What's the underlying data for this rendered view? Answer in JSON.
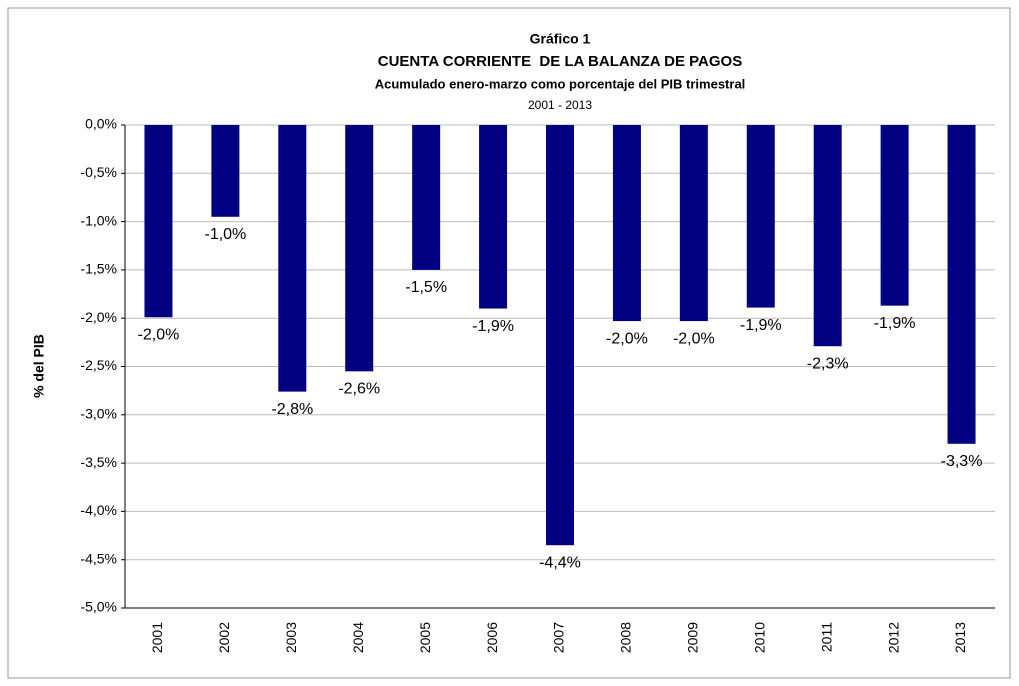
{
  "chart_data": {
    "type": "bar",
    "title": "Gráfico 1",
    "subtitle": "CUENTA CORRIENTE  DE LA BALANZA DE PAGOS",
    "description": "Acumulado enero-marzo como porcentaje del PIB trimestral",
    "period": "2001 - 2013",
    "y_label": "% del PIB",
    "categories": [
      "2001",
      "2002",
      "2003",
      "2004",
      "2005",
      "2006",
      "2007",
      "2008",
      "2009",
      "2010",
      "2011",
      "2012",
      "2013"
    ],
    "values": [
      -1.99,
      -0.95,
      -2.76,
      -2.55,
      -1.5,
      -1.9,
      -4.35,
      -2.03,
      -2.03,
      -1.89,
      -2.29,
      -1.87,
      -3.3
    ],
    "value_labels": [
      "-2,0%",
      "-1,0%",
      "-2,8%",
      "-2,6%",
      "-1,5%",
      "-1,9%",
      "-4,4%",
      "-2,0%",
      "-2,0%",
      "-1,9%",
      "-2,3%",
      "-1,9%",
      "-3,3%"
    ],
    "color": "#000080",
    "ylim": [
      -5,
      0
    ],
    "yticks": [
      {
        "value": 0,
        "label": "0,0%"
      },
      {
        "value": -0.5,
        "label": "-0,5%"
      },
      {
        "value": -1,
        "label": "-1,0%"
      },
      {
        "value": -1.5,
        "label": "-1,5%"
      },
      {
        "value": -2,
        "label": "-2,0%"
      },
      {
        "value": -2.5,
        "label": "-2,5%"
      },
      {
        "value": -3,
        "label": "-3,0%"
      },
      {
        "value": -3.5,
        "label": "-3,5%"
      },
      {
        "value": -4,
        "label": "-4,0%"
      },
      {
        "value": -4.5,
        "label": "-4,5%"
      },
      {
        "value": -5,
        "label": "-5,0%"
      }
    ],
    "grid": true
  }
}
